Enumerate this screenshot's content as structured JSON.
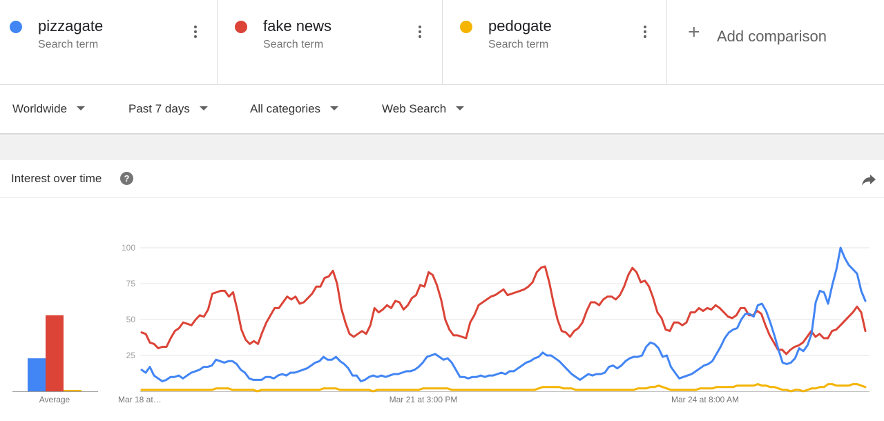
{
  "terms": [
    {
      "name": "pizzagate",
      "sub": "Search term",
      "color": "#4285f4"
    },
    {
      "name": "fake news",
      "sub": "Search term",
      "color": "#db4437"
    },
    {
      "name": "pedogate",
      "sub": "Search term",
      "color": "#f4b400"
    }
  ],
  "add_comparison": {
    "plus": "+",
    "label": "Add comparison"
  },
  "filters": {
    "region": "Worldwide",
    "time": "Past 7 days",
    "category": "All categories",
    "search_type": "Web Search"
  },
  "card": {
    "title": "Interest over time",
    "help": "?"
  },
  "chart_data": {
    "type": "line",
    "title": "Interest over time",
    "ylim": [
      0,
      100
    ],
    "yticks": [
      "25",
      "50",
      "75",
      "100"
    ],
    "x_tick_labels": [
      "Mar 18 at…",
      "Mar 21 at 3:00 PM",
      "Mar 24 at 8:00 AM"
    ],
    "grid": true,
    "average_label": "Average",
    "averages": [
      {
        "name": "pizzagate",
        "value": 23
      },
      {
        "name": "fake news",
        "value": 53
      },
      {
        "name": "pedogate",
        "value": 1
      }
    ],
    "series": [
      {
        "name": "pizzagate",
        "color": "#4285f4",
        "values": [
          15,
          13,
          17,
          11,
          9,
          7,
          8,
          10,
          10,
          11,
          9,
          11,
          13,
          14,
          15,
          17,
          17,
          18,
          22,
          21,
          20,
          21,
          21,
          19,
          15,
          13,
          9,
          8,
          8,
          8,
          10,
          10,
          9,
          11,
          12,
          11,
          13,
          13,
          14,
          15,
          16,
          18,
          20,
          21,
          24,
          22,
          22,
          24,
          21,
          19,
          16,
          11,
          11,
          7,
          8,
          10,
          11,
          10,
          11,
          10,
          11,
          12,
          12,
          13,
          14,
          14,
          15,
          17,
          20,
          24,
          25,
          26,
          24,
          22,
          23,
          20,
          15,
          10,
          10,
          9,
          10,
          10,
          11,
          10,
          11,
          11,
          12,
          13,
          12,
          14,
          14,
          16,
          18,
          20,
          21,
          23,
          24,
          27,
          25,
          25,
          23,
          21,
          18,
          15,
          12,
          10,
          8,
          10,
          12,
          11,
          12,
          12,
          13,
          17,
          18,
          16,
          18,
          21,
          23,
          24,
          24,
          25,
          31,
          34,
          33,
          30,
          24,
          25,
          17,
          13,
          9,
          10,
          11,
          12,
          14,
          16,
          18,
          19,
          21,
          26,
          31,
          37,
          41,
          43,
          44,
          50,
          54,
          54,
          52,
          60,
          61,
          56,
          48,
          39,
          29,
          20,
          19,
          20,
          23,
          30,
          28,
          32,
          40,
          62,
          70,
          69,
          61,
          74,
          85,
          100,
          93,
          88,
          85,
          82,
          70,
          63
        ]
      },
      {
        "name": "fake news",
        "color": "#db4437",
        "values": [
          41,
          40,
          34,
          33,
          30,
          31,
          31,
          37,
          42,
          44,
          48,
          47,
          46,
          50,
          53,
          52,
          57,
          68,
          69,
          70,
          70,
          66,
          69,
          57,
          43,
          36,
          33,
          35,
          33,
          41,
          48,
          53,
          58,
          58,
          62,
          66,
          64,
          66,
          61,
          62,
          65,
          68,
          73,
          73,
          79,
          80,
          84,
          75,
          58,
          48,
          40,
          38,
          40,
          42,
          40,
          46,
          58,
          55,
          57,
          60,
          58,
          63,
          62,
          57,
          60,
          65,
          67,
          74,
          73,
          83,
          81,
          74,
          64,
          50,
          43,
          39,
          39,
          38,
          37,
          48,
          53,
          60,
          62,
          64,
          66,
          67,
          69,
          71,
          67,
          68,
          69,
          70,
          71,
          73,
          76,
          83,
          86,
          87,
          76,
          62,
          50,
          42,
          41,
          38,
          42,
          44,
          48,
          56,
          62,
          62,
          60,
          64,
          66,
          66,
          64,
          67,
          73,
          81,
          86,
          83,
          76,
          77,
          73,
          65,
          55,
          51,
          43,
          42,
          48,
          48,
          46,
          48,
          55,
          55,
          58,
          56,
          58,
          57,
          60,
          58,
          55,
          52,
          51,
          53,
          58,
          58,
          53,
          53,
          56,
          54,
          46,
          39,
          34,
          29,
          29,
          26,
          29,
          31,
          32,
          34,
          38,
          42,
          38,
          40,
          37,
          37,
          42,
          43,
          46,
          49,
          52,
          55,
          59,
          55,
          42
        ]
      },
      {
        "name": "pedogate",
        "color": "#f4b400",
        "values": [
          1,
          1,
          1,
          1,
          1,
          1,
          1,
          1,
          1,
          1,
          1,
          1,
          1,
          1,
          1,
          1,
          1,
          1,
          2,
          2,
          2,
          2,
          1,
          1,
          1,
          1,
          1,
          1,
          0,
          1,
          1,
          1,
          1,
          1,
          1,
          1,
          1,
          1,
          1,
          1,
          1,
          1,
          1,
          1,
          2,
          2,
          2,
          2,
          1,
          1,
          1,
          1,
          1,
          1,
          1,
          1,
          0,
          1,
          1,
          1,
          1,
          1,
          1,
          1,
          1,
          1,
          1,
          1,
          2,
          2,
          2,
          2,
          2,
          2,
          2,
          1,
          1,
          1,
          1,
          1,
          1,
          1,
          1,
          1,
          1,
          1,
          1,
          1,
          1,
          1,
          1,
          1,
          1,
          1,
          1,
          1,
          2,
          3,
          3,
          3,
          3,
          3,
          2,
          2,
          2,
          1,
          1,
          1,
          1,
          1,
          1,
          1,
          1,
          1,
          1,
          1,
          1,
          1,
          1,
          1,
          2,
          2,
          2,
          3,
          3,
          4,
          3,
          2,
          1,
          1,
          1,
          1,
          1,
          1,
          1,
          2,
          2,
          2,
          2,
          3,
          3,
          3,
          3,
          3,
          4,
          4,
          4,
          4,
          4,
          5,
          4,
          4,
          3,
          3,
          2,
          1,
          1,
          0,
          1,
          1,
          0,
          1,
          2,
          2,
          3,
          3,
          5,
          5,
          4,
          4,
          4,
          4,
          5,
          5,
          4,
          3
        ]
      }
    ]
  }
}
